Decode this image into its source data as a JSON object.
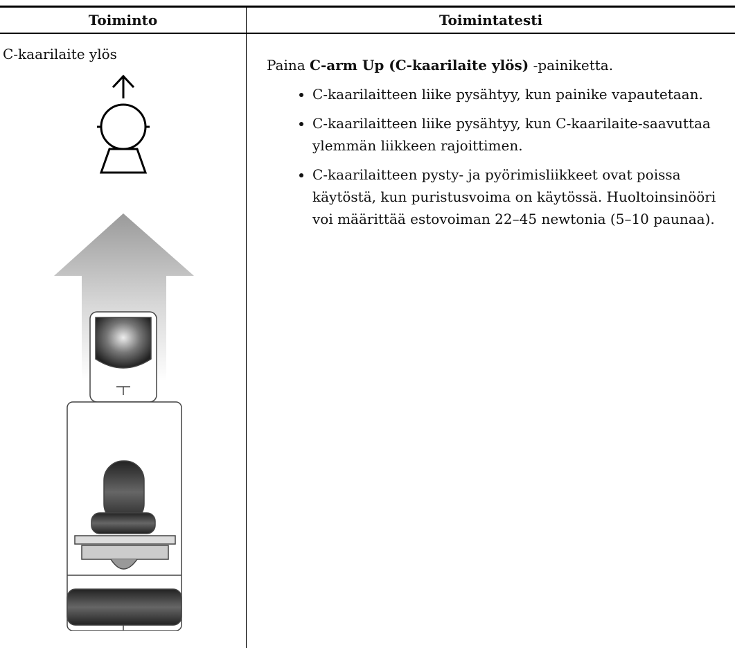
{
  "table": {
    "headers": [
      "Toiminto",
      "Toimintatesti"
    ],
    "rows": [
      {
        "action": "C-kaarilaite ylös",
        "test": {
          "lead": "Paina",
          "bold": "C-arm Up (C-kaarilaite ylös)",
          "tail": "-painiketta.",
          "bullets": [
            "C-kaarilaitteen liike pysähtyy, kun painike vapautetaan.",
            "C-kaarilaitteen liike pysähtyy, kun C-kaarilaite-saavuttaa ylemmän liikkeen rajoittimen.",
            "C-kaarilaitteen pysty- ja pyörimisliikkeet ovat poissa käytöstä, kun puristusvoima on käytössä. Huoltoinsinööri voi määrittää estovoiman 22–45 newtonia (5–10 paunaa)."
          ]
        }
      }
    ]
  }
}
